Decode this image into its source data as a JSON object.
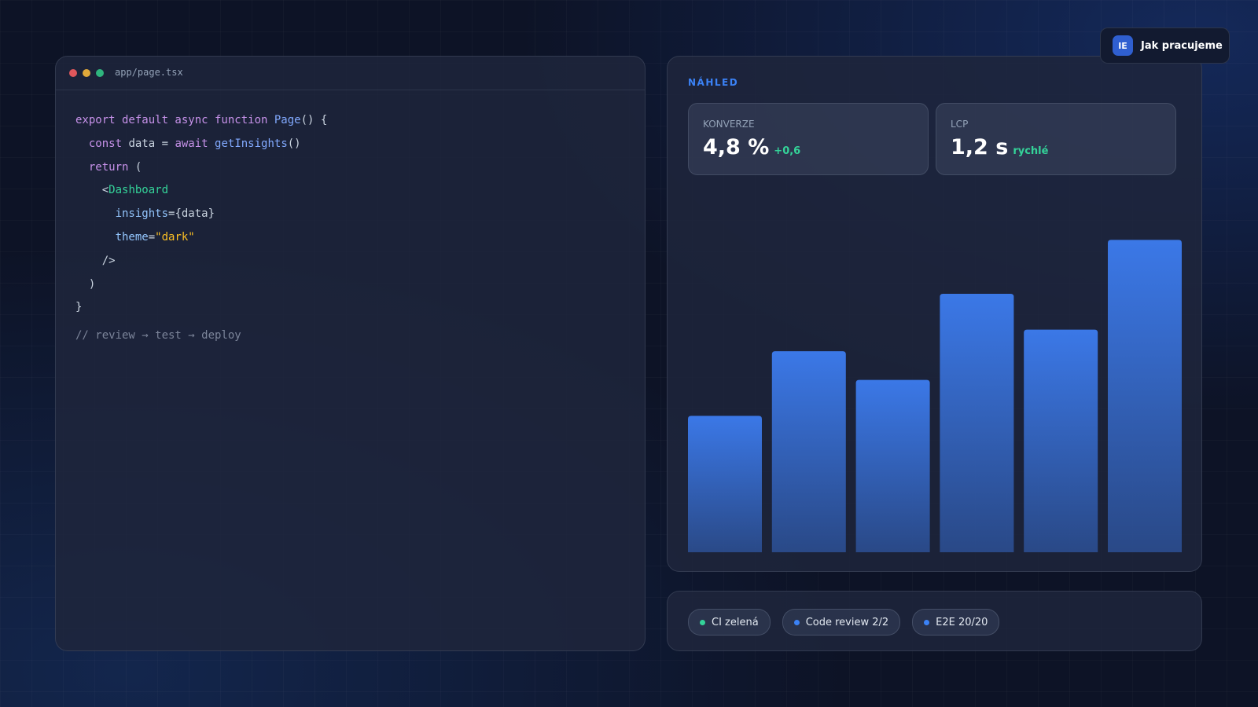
{
  "editor": {
    "filename": "app/page.tsx",
    "palette": {
      "keyword": "#c792ea",
      "function": "#82aaff",
      "plain": "#cbd5e1",
      "tag": "#34d399",
      "attr": "#93c5fd",
      "string": "#fbbf24"
    },
    "lines": [
      [
        {
          "text": "export default async function ",
          "kind": "keyword"
        },
        {
          "text": "Page",
          "kind": "function"
        },
        {
          "text": "() {",
          "kind": "plain"
        }
      ],
      [
        {
          "text": "  const",
          "kind": "keyword"
        },
        {
          "text": " data = ",
          "kind": "plain"
        },
        {
          "text": "await ",
          "kind": "keyword"
        },
        {
          "text": "getInsights",
          "kind": "function"
        },
        {
          "text": "()",
          "kind": "plain"
        }
      ],
      [
        {
          "text": "  return",
          "kind": "keyword"
        },
        {
          "text": " (",
          "kind": "plain"
        }
      ],
      [
        {
          "text": "    <",
          "kind": "plain"
        },
        {
          "text": "Dashboard",
          "kind": "tag"
        }
      ],
      [
        {
          "text": "      insights",
          "kind": "attr"
        },
        {
          "text": "={data}",
          "kind": "plain"
        }
      ],
      [
        {
          "text": "      theme",
          "kind": "attr"
        },
        {
          "text": "=",
          "kind": "plain"
        },
        {
          "text": "\"dark\"",
          "kind": "string"
        }
      ],
      [
        {
          "text": "    />",
          "kind": "plain"
        }
      ],
      [
        {
          "text": "  )",
          "kind": "plain"
        }
      ],
      [
        {
          "text": "}",
          "kind": "plain"
        }
      ]
    ],
    "comment": "// review → test → deploy"
  },
  "preview": {
    "label": "NÁHLED",
    "kpis": [
      {
        "label": "KONVERZE",
        "value": "4,8 %",
        "note": "+0,6"
      },
      {
        "label": "LCP",
        "value": "1,2 s",
        "note": "rychlé"
      }
    ],
    "chart": {
      "type": "bar",
      "values": [
        38,
        56,
        48,
        72,
        62,
        87
      ],
      "ylim": [
        0,
        100
      ],
      "color": "#3b78e7"
    }
  },
  "status": [
    {
      "text": "CI zelená",
      "color": "#34d399"
    },
    {
      "text": "Code review 2/2",
      "color": "#3b82f6"
    },
    {
      "text": "E2E 20/20",
      "color": "#3b82f6"
    }
  ],
  "nav": {
    "badge": "IE",
    "button": "Jak pracujeme"
  }
}
